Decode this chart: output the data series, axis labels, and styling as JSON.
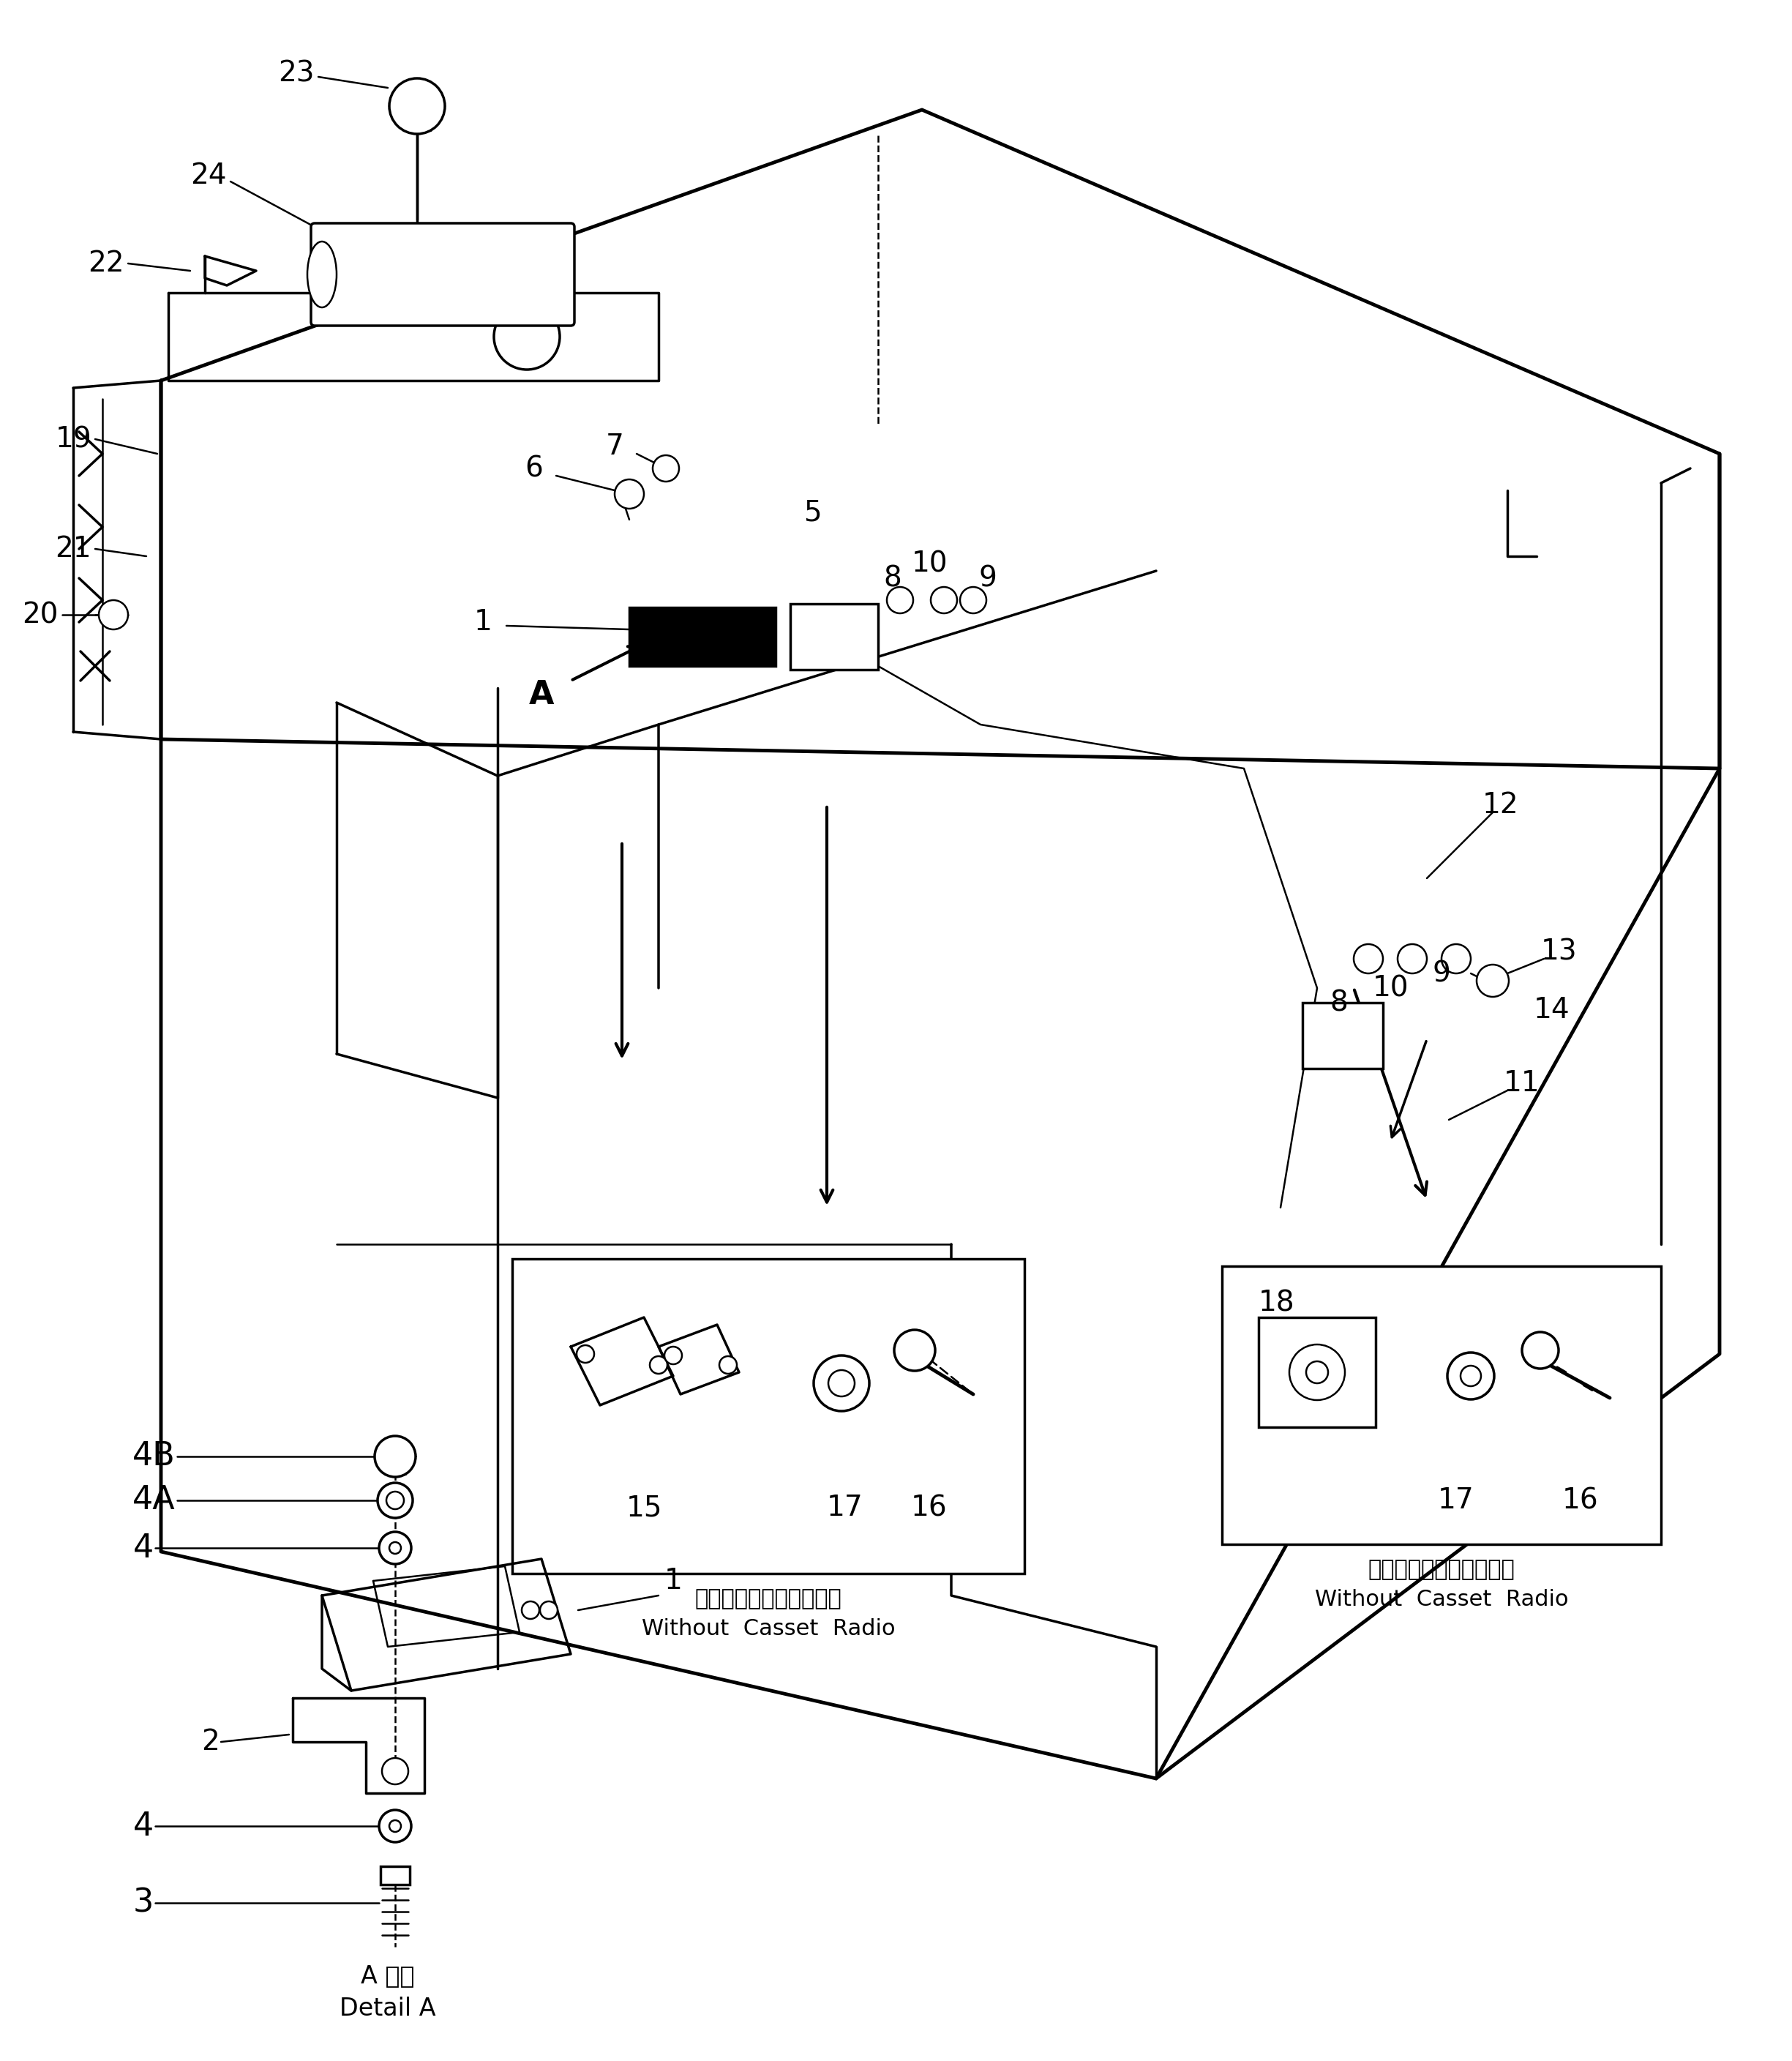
{
  "background_color": "#ffffff",
  "fig_width": 24.49,
  "fig_height": 28.16,
  "detail_a_text": [
    "A 詳細",
    "Detail A"
  ],
  "box1_text": [
    "カセットラジオ未装着時",
    "Without  Casset  Radio"
  ],
  "box2_text": [
    "カセットラジオ未装着時",
    "Without  Casset  Radio"
  ]
}
